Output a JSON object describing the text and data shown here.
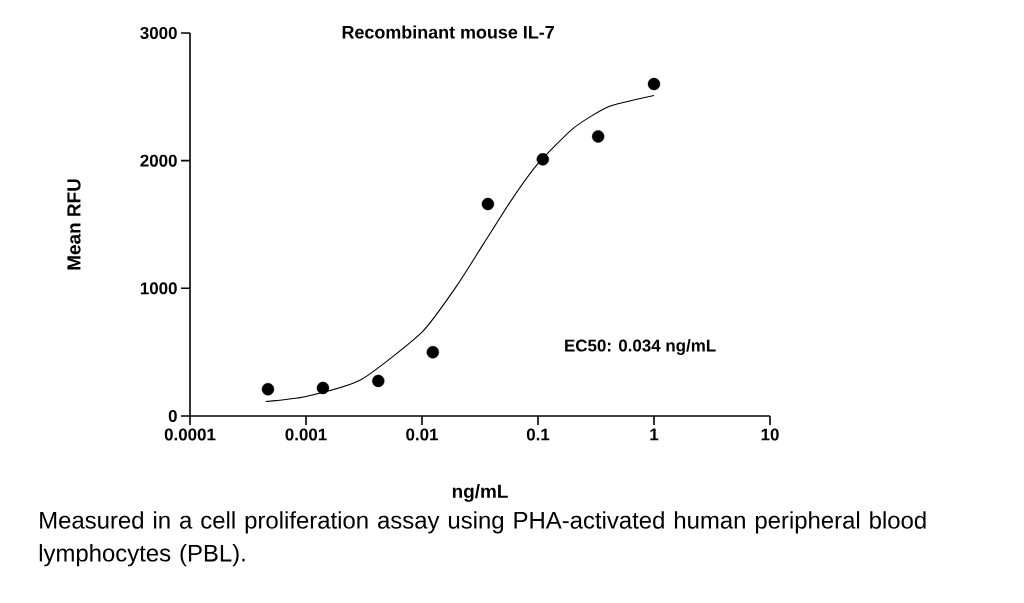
{
  "chart_data": {
    "type": "scatter",
    "title": "Recombinant mouse IL-7",
    "xlabel": "ng/mL",
    "ylabel": "Mean RFU",
    "annotations": [
      "EC50: 0.034 ng/mL",
      "Measured in a cell proliferation assay using PHA-activated human peripheral blood lymphocytes (PBL)."
    ],
    "log": "x",
    "xlim": [
      0.0001,
      10
    ],
    "ylim": [
      0,
      3000
    ],
    "xticks": [
      0.0001,
      0.001,
      0.01,
      0.1,
      1,
      10
    ],
    "yticks": [
      0,
      1000,
      2000,
      3000
    ],
    "series": [
      {
        "marker": "circle",
        "color": "#000000",
        "x": [
          0.00047,
          0.0014,
          0.0042,
          0.0124,
          0.037,
          0.11,
          0.33,
          1
        ],
        "values": [
          210,
          220,
          275,
          500,
          1660,
          2010,
          2190,
          2600
        ]
      },
      {
        "type": "line",
        "marker": "none",
        "color": "#000000",
        "x": [
          0.00045,
          0.001,
          0.003,
          0.01,
          0.02,
          0.034,
          0.06,
          0.1,
          0.2,
          0.4,
          1
        ],
        "values": [
          113,
          153,
          286,
          657,
          1021,
          1350,
          1701,
          1976,
          2251,
          2421,
          2510
        ]
      }
    ]
  }
}
